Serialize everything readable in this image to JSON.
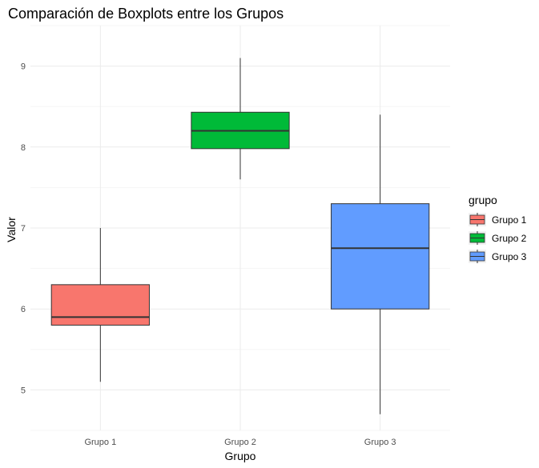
{
  "chart_data": {
    "type": "boxplot",
    "title": "Comparación de Boxplots entre los Grupos",
    "xlabel": "Grupo",
    "ylabel": "Valor",
    "categories": [
      "Grupo 1",
      "Grupo 2",
      "Grupo 3"
    ],
    "ylim": [
      4.5,
      9.5
    ],
    "yticks": [
      5,
      6,
      7,
      8,
      9
    ],
    "grid": true,
    "legend": {
      "title": "grupo",
      "position": "right",
      "entries": [
        "Grupo 1",
        "Grupo 2",
        "Grupo 3"
      ]
    },
    "boxes": [
      {
        "group": "Grupo 1",
        "min": 5.1,
        "q1": 5.8,
        "median": 5.9,
        "q3": 6.3,
        "max": 7.0,
        "color": "#F8766D"
      },
      {
        "group": "Grupo 2",
        "min": 7.6,
        "q1": 7.98,
        "median": 8.2,
        "q3": 8.43,
        "max": 9.1,
        "color": "#00BA38"
      },
      {
        "group": "Grupo 3",
        "min": 4.7,
        "q1": 6.0,
        "median": 6.75,
        "q3": 7.3,
        "max": 8.4,
        "color": "#619CFF"
      }
    ]
  }
}
